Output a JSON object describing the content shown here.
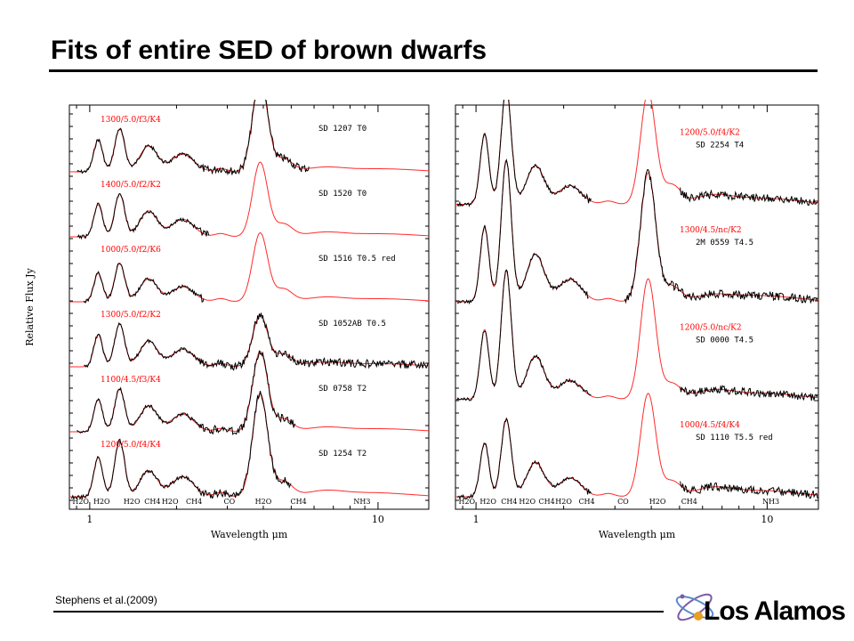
{
  "slide": {
    "title": "Fits of entire SED of brown dwarfs",
    "citation": "Stephens et al.(2009)",
    "logo_text": "Los Alamos",
    "colors": {
      "model": "#ff2a2a",
      "observed": "#000000",
      "text_red": "#ff0000"
    }
  },
  "chart_data": [
    {
      "type": "line",
      "xlabel": "Wavelength μm",
      "ylabel": "Relative Flux Jy",
      "x_scale": "log",
      "xlim": [
        0.85,
        15
      ],
      "x_ticks": [
        1,
        10
      ],
      "x_tick_labels": [
        "1",
        "10"
      ],
      "bands": [
        {
          "label": "H2O",
          "x": 0.93
        },
        {
          "label": "H2O",
          "x": 1.1
        },
        {
          "label": "H2O",
          "x": 1.4
        },
        {
          "label": "CH4",
          "x": 1.65
        },
        {
          "label": "H2O",
          "x": 1.9
        },
        {
          "label": "CH4",
          "x": 2.3
        },
        {
          "label": "CO",
          "x": 3.05
        },
        {
          "label": "H2O",
          "x": 4.0
        },
        {
          "label": "CH4",
          "x": 5.3
        },
        {
          "label": "NH3",
          "x": 8.8
        }
      ],
      "series": [
        {
          "model": "1300/5.0/f3/K4",
          "name": "SD 1207 T0"
        },
        {
          "model": "1400/5.0/f2/K2",
          "name": "SD 1520 T0"
        },
        {
          "model": "1000/5.0/f2/K6",
          "name": "SD 1516 T0.5 red"
        },
        {
          "model": "1300/5.0/f2/K2",
          "name": "SD 1052AB T0.5"
        },
        {
          "model": "1100/4.5/f3/K4",
          "name": "SD 0758 T2"
        },
        {
          "model": "1200/5.0/f4/K4",
          "name": "SD 1254 T2"
        }
      ]
    },
    {
      "type": "line",
      "xlabel": "Wavelength μm",
      "ylabel": "",
      "x_scale": "log",
      "xlim": [
        0.85,
        15
      ],
      "x_ticks": [
        1,
        10
      ],
      "x_tick_labels": [
        "1",
        "10"
      ],
      "bands": [
        {
          "label": "H2O",
          "x": 0.93
        },
        {
          "label": "H2O",
          "x": 1.1
        },
        {
          "label": "CH4",
          "x": 1.3
        },
        {
          "label": "H2O",
          "x": 1.5
        },
        {
          "label": "CH4",
          "x": 1.75
        },
        {
          "label": "H2O",
          "x": 2.0
        },
        {
          "label": "CH4",
          "x": 2.4
        },
        {
          "label": "CO",
          "x": 3.2
        },
        {
          "label": "H2O",
          "x": 4.2
        },
        {
          "label": "CH4",
          "x": 5.4
        },
        {
          "label": "NH3",
          "x": 10.3
        }
      ],
      "series": [
        {
          "model": "1200/5.0/f4/K2",
          "name": "SD 2254 T4"
        },
        {
          "model": "1300/4.5/nc/K2",
          "name": "2M 0559 T4.5"
        },
        {
          "model": "1200/5.0/nc/K2",
          "name": "SD 0000 T4.5"
        },
        {
          "model": "1000/4.5/f4/K4",
          "name": "SD 1110 T5.5 red"
        }
      ]
    }
  ]
}
